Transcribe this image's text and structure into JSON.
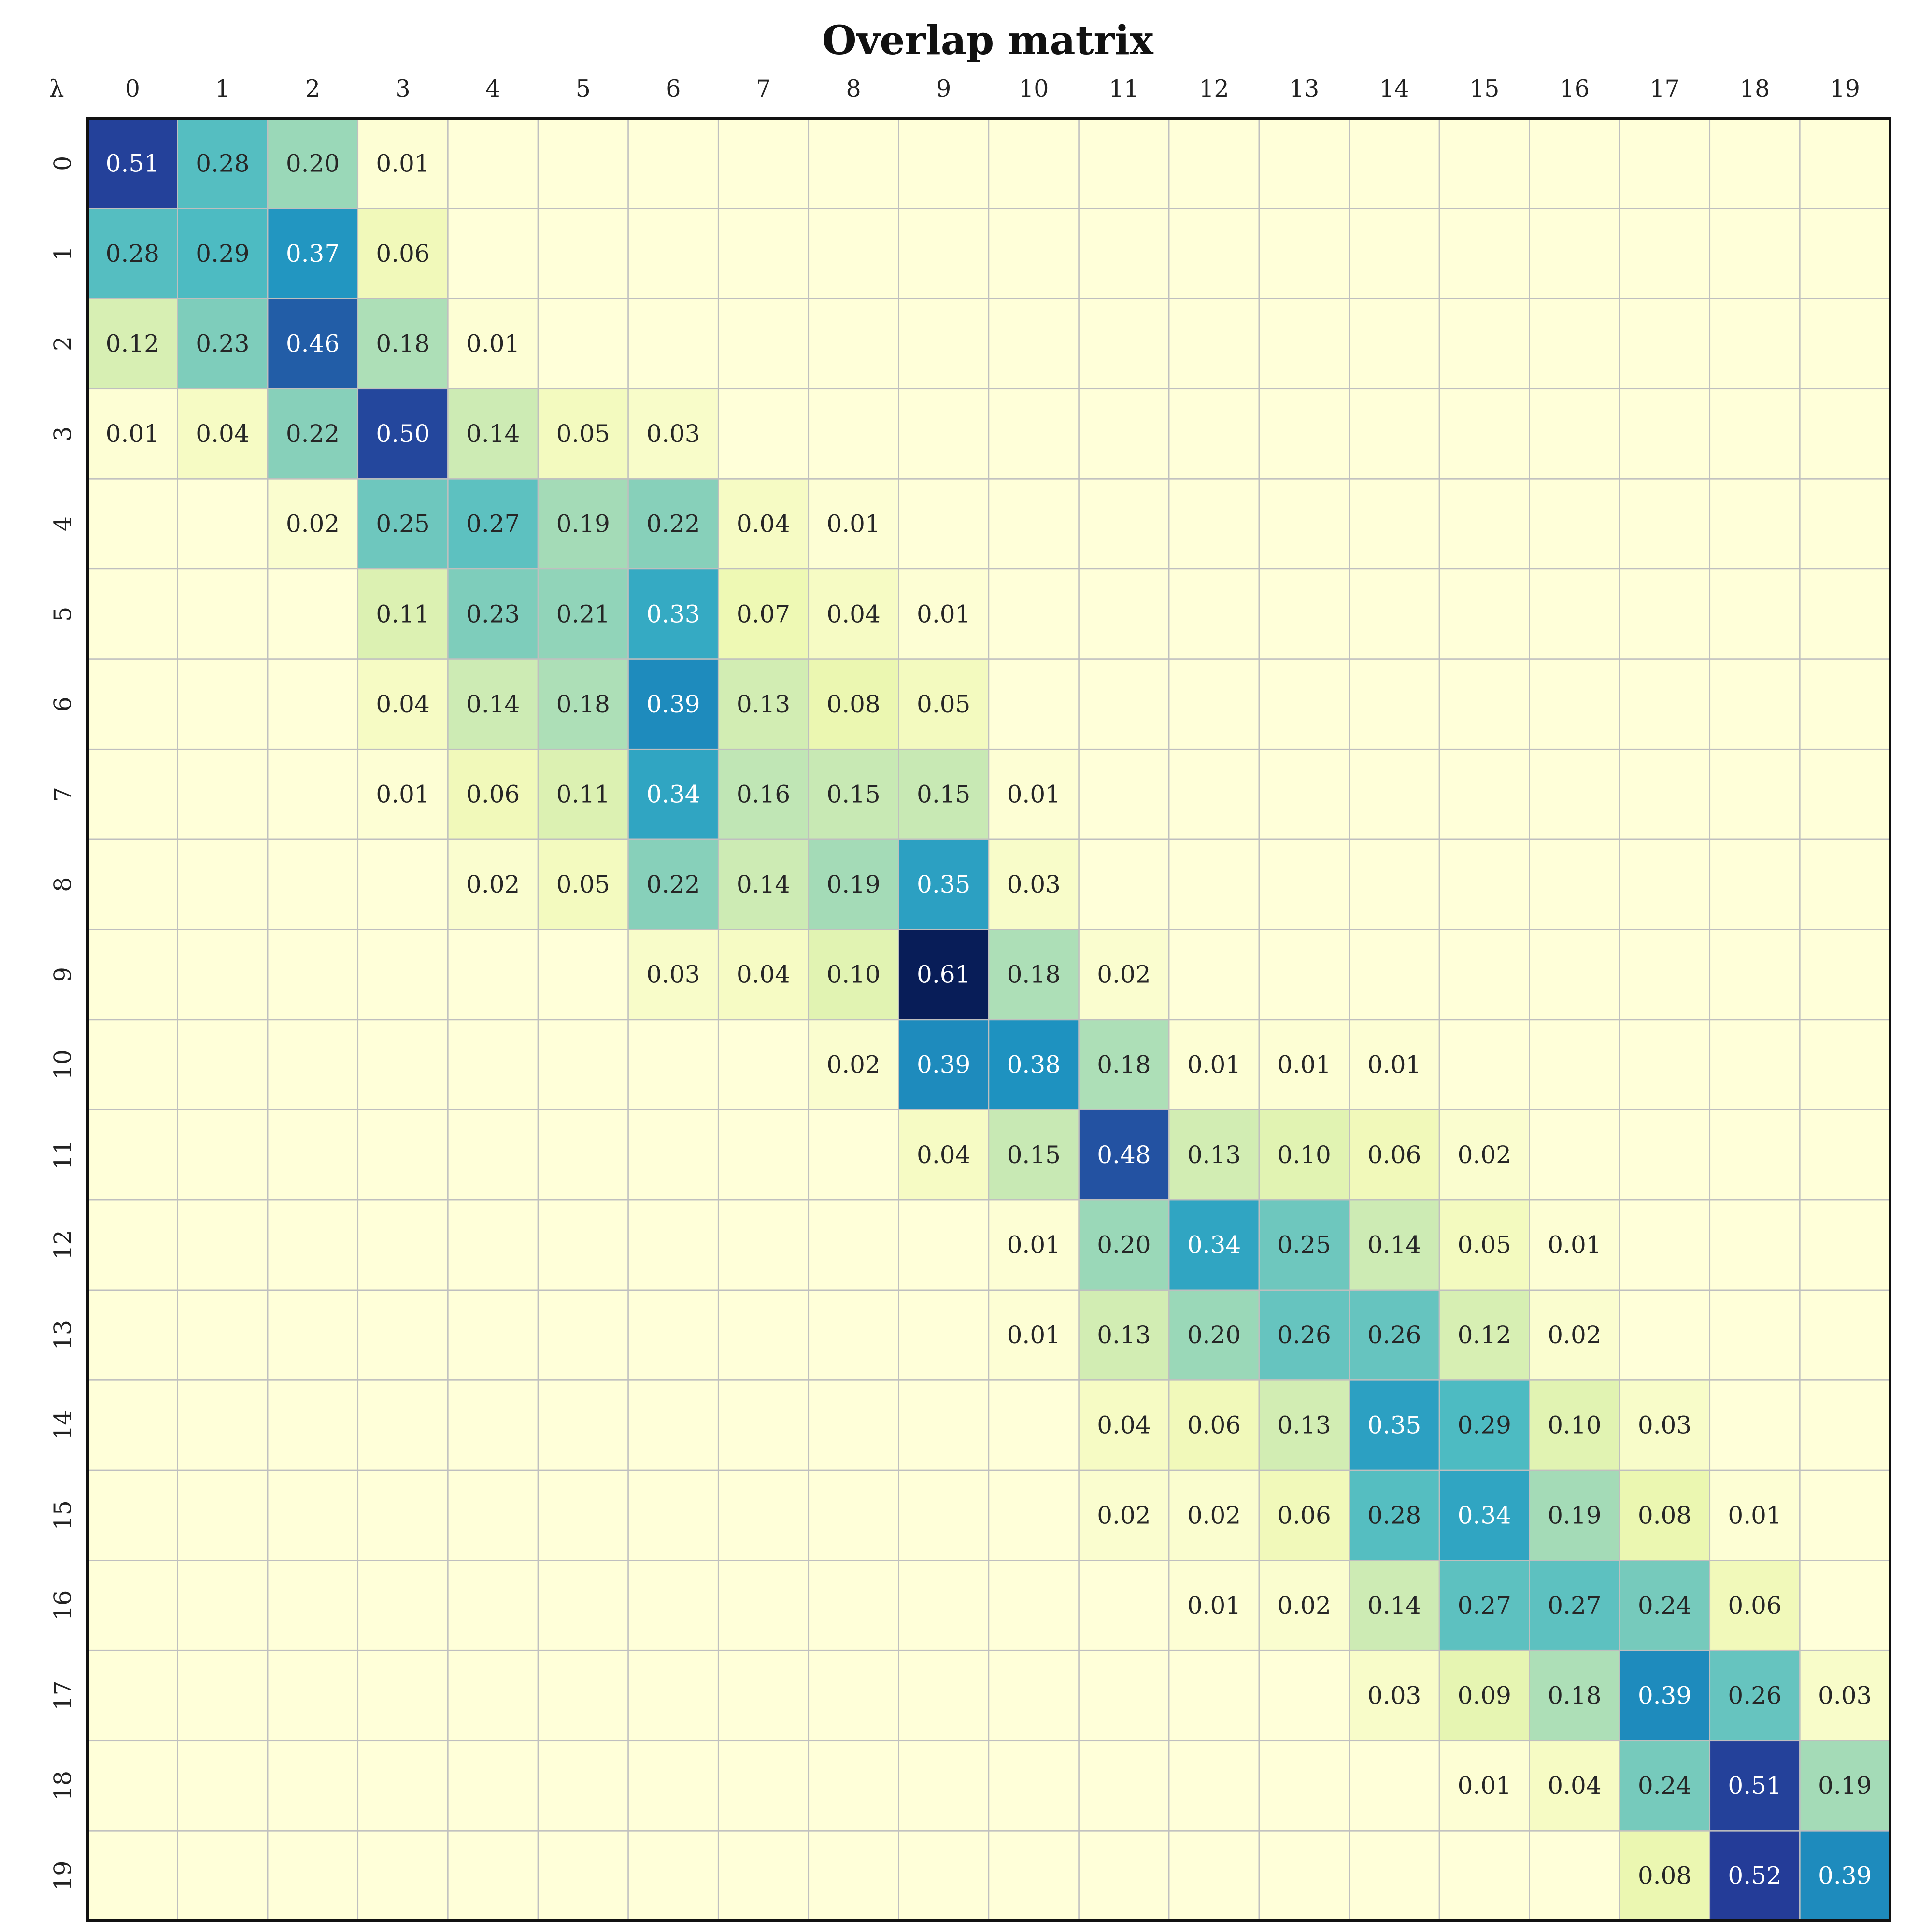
{
  "chart_data": {
    "type": "heatmap",
    "title": "Overlap matrix",
    "corner_label": "λ",
    "x_categories": [
      "0",
      "1",
      "2",
      "3",
      "4",
      "5",
      "6",
      "7",
      "8",
      "9",
      "10",
      "11",
      "12",
      "13",
      "14",
      "15",
      "16",
      "17",
      "18",
      "19"
    ],
    "y_categories": [
      "0",
      "1",
      "2",
      "3",
      "4",
      "5",
      "6",
      "7",
      "8",
      "9",
      "10",
      "11",
      "12",
      "13",
      "14",
      "15",
      "16",
      "17",
      "18",
      "19"
    ],
    "value_range": [
      0,
      0.61
    ],
    "colormap": [
      "#ffffd9",
      "#edf8b1",
      "#c7e9b4",
      "#7fcdbb",
      "#41b6c4",
      "#1d91c0",
      "#225ea8",
      "#253494",
      "#081d58"
    ],
    "text_color_dark": "#262626",
    "text_color_light": "#ffffff",
    "grid_color": "#bfbfbf",
    "values": [
      [
        0.51,
        0.28,
        0.2,
        0.01,
        null,
        null,
        null,
        null,
        null,
        null,
        null,
        null,
        null,
        null,
        null,
        null,
        null,
        null,
        null,
        null
      ],
      [
        0.28,
        0.29,
        0.37,
        0.06,
        null,
        null,
        null,
        null,
        null,
        null,
        null,
        null,
        null,
        null,
        null,
        null,
        null,
        null,
        null,
        null
      ],
      [
        0.12,
        0.23,
        0.46,
        0.18,
        0.01,
        null,
        null,
        null,
        null,
        null,
        null,
        null,
        null,
        null,
        null,
        null,
        null,
        null,
        null,
        null
      ],
      [
        0.01,
        0.04,
        0.22,
        0.5,
        0.14,
        0.05,
        0.03,
        null,
        null,
        null,
        null,
        null,
        null,
        null,
        null,
        null,
        null,
        null,
        null,
        null
      ],
      [
        null,
        null,
        0.02,
        0.25,
        0.27,
        0.19,
        0.22,
        0.04,
        0.01,
        null,
        null,
        null,
        null,
        null,
        null,
        null,
        null,
        null,
        null,
        null
      ],
      [
        null,
        null,
        null,
        0.11,
        0.23,
        0.21,
        0.33,
        0.07,
        0.04,
        0.01,
        null,
        null,
        null,
        null,
        null,
        null,
        null,
        null,
        null,
        null
      ],
      [
        null,
        null,
        null,
        0.04,
        0.14,
        0.18,
        0.39,
        0.13,
        0.08,
        0.05,
        null,
        null,
        null,
        null,
        null,
        null,
        null,
        null,
        null,
        null
      ],
      [
        null,
        null,
        null,
        0.01,
        0.06,
        0.11,
        0.34,
        0.16,
        0.15,
        0.15,
        0.01,
        null,
        null,
        null,
        null,
        null,
        null,
        null,
        null,
        null
      ],
      [
        null,
        null,
        null,
        null,
        0.02,
        0.05,
        0.22,
        0.14,
        0.19,
        0.35,
        0.03,
        null,
        null,
        null,
        null,
        null,
        null,
        null,
        null,
        null
      ],
      [
        null,
        null,
        null,
        null,
        null,
        null,
        0.03,
        0.04,
        0.1,
        0.61,
        0.18,
        0.02,
        null,
        null,
        null,
        null,
        null,
        null,
        null,
        null
      ],
      [
        null,
        null,
        null,
        null,
        null,
        null,
        null,
        null,
        0.02,
        0.39,
        0.38,
        0.18,
        0.01,
        0.01,
        0.01,
        null,
        null,
        null,
        null,
        null
      ],
      [
        null,
        null,
        null,
        null,
        null,
        null,
        null,
        null,
        null,
        0.04,
        0.15,
        0.48,
        0.13,
        0.1,
        0.06,
        0.02,
        null,
        null,
        null,
        null
      ],
      [
        null,
        null,
        null,
        null,
        null,
        null,
        null,
        null,
        null,
        null,
        0.01,
        0.2,
        0.34,
        0.25,
        0.14,
        0.05,
        0.01,
        null,
        null,
        null
      ],
      [
        null,
        null,
        null,
        null,
        null,
        null,
        null,
        null,
        null,
        null,
        0.01,
        0.13,
        0.2,
        0.26,
        0.26,
        0.12,
        0.02,
        null,
        null,
        null
      ],
      [
        null,
        null,
        null,
        null,
        null,
        null,
        null,
        null,
        null,
        null,
        null,
        0.04,
        0.06,
        0.13,
        0.35,
        0.29,
        0.1,
        0.03,
        null,
        null
      ],
      [
        null,
        null,
        null,
        null,
        null,
        null,
        null,
        null,
        null,
        null,
        null,
        0.02,
        0.02,
        0.06,
        0.28,
        0.34,
        0.19,
        0.08,
        0.01,
        null
      ],
      [
        null,
        null,
        null,
        null,
        null,
        null,
        null,
        null,
        null,
        null,
        null,
        null,
        0.01,
        0.02,
        0.14,
        0.27,
        0.27,
        0.24,
        0.06,
        null
      ],
      [
        null,
        null,
        null,
        null,
        null,
        null,
        null,
        null,
        null,
        null,
        null,
        null,
        null,
        null,
        0.03,
        0.09,
        0.18,
        0.39,
        0.26,
        0.03
      ],
      [
        null,
        null,
        null,
        null,
        null,
        null,
        null,
        null,
        null,
        null,
        null,
        null,
        null,
        null,
        null,
        0.01,
        0.04,
        0.24,
        0.51,
        0.19
      ],
      [
        null,
        null,
        null,
        null,
        null,
        null,
        null,
        null,
        null,
        null,
        null,
        null,
        null,
        null,
        null,
        null,
        null,
        0.08,
        0.52,
        0.39
      ]
    ]
  }
}
